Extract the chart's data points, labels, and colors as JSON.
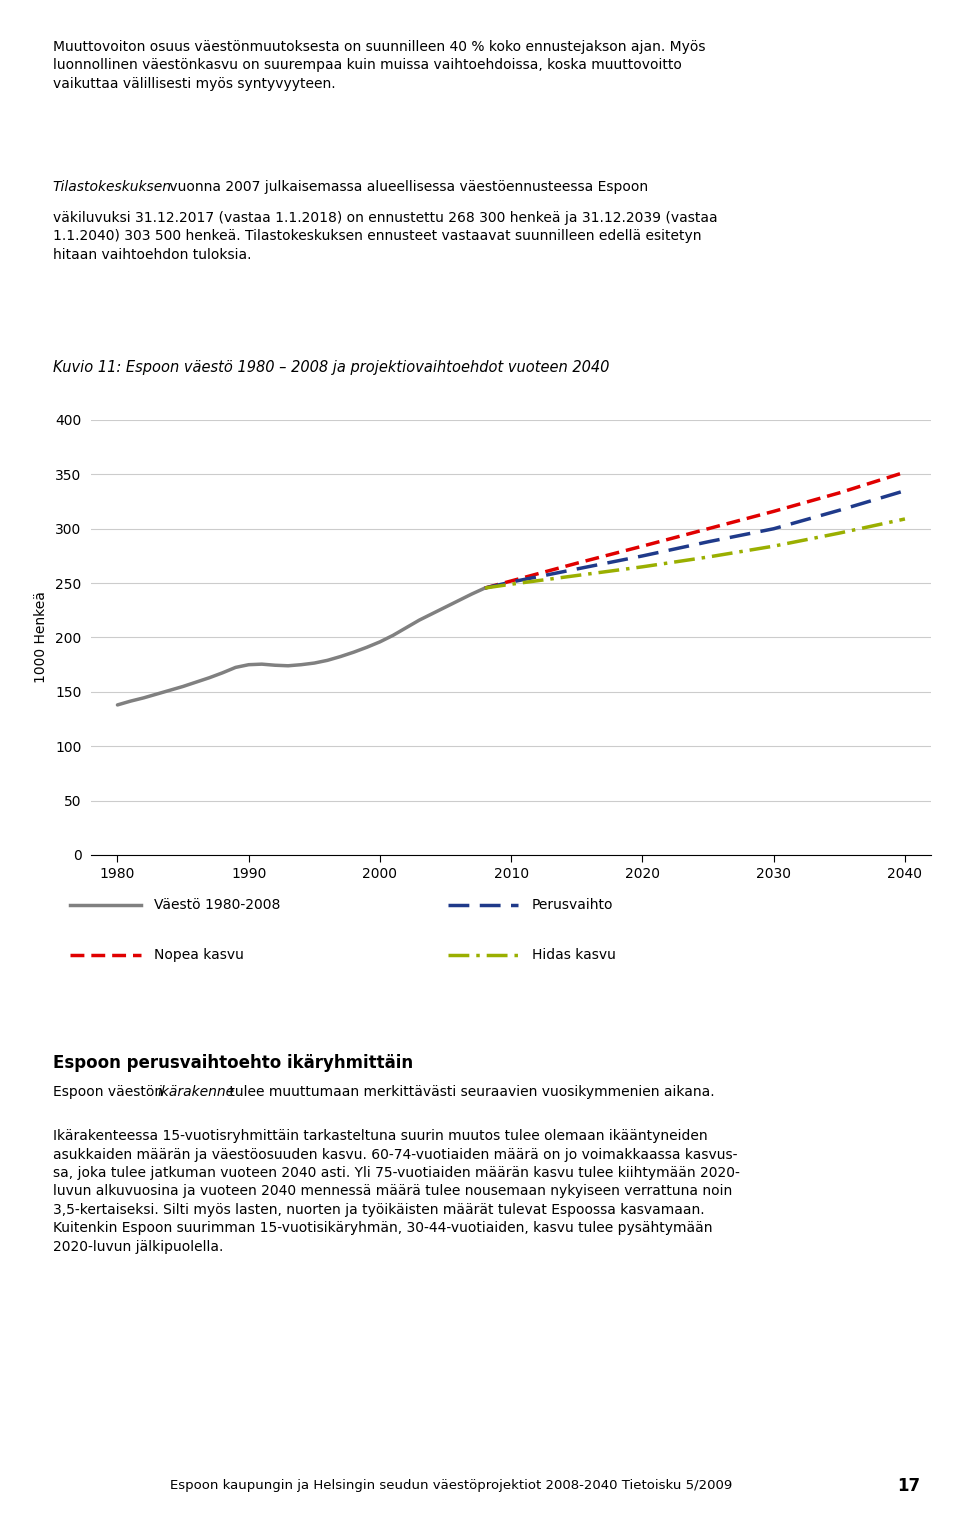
{
  "title": "Kuvio 11: Espoon väestö 1980 – 2008 ja projektiovaihtoehdot vuoteen 2040",
  "ylabel": "1000 Henkeä",
  "ylim": [
    0,
    400
  ],
  "yticks": [
    0,
    50,
    100,
    150,
    200,
    250,
    300,
    350,
    400
  ],
  "xlim": [
    1978,
    2042
  ],
  "xticks": [
    1980,
    1990,
    2000,
    2010,
    2020,
    2030,
    2040
  ],
  "historical_years": [
    1980,
    1981,
    1982,
    1983,
    1984,
    1985,
    1986,
    1987,
    1988,
    1989,
    1990,
    1991,
    1992,
    1993,
    1994,
    1995,
    1996,
    1997,
    1998,
    1999,
    2000,
    2001,
    2002,
    2003,
    2004,
    2005,
    2006,
    2007,
    2008
  ],
  "historical_values": [
    138.0,
    141.5,
    144.5,
    148.0,
    151.5,
    155.0,
    159.0,
    163.0,
    167.5,
    172.5,
    175.0,
    175.5,
    174.5,
    174.0,
    175.0,
    176.5,
    179.0,
    182.5,
    186.5,
    191.0,
    196.0,
    202.0,
    209.0,
    216.0,
    222.0,
    228.0,
    234.0,
    240.0,
    245.5
  ],
  "historical_color": "#808080",
  "historical_linewidth": 2.5,
  "proj_years": [
    2008,
    2010,
    2015,
    2020,
    2025,
    2030,
    2035,
    2040
  ],
  "nopea_values": [
    245.5,
    252.0,
    268.3,
    284.0,
    300.0,
    316.0,
    333.0,
    352.0
  ],
  "nopea_color": "#e00000",
  "nopea_linewidth": 2.5,
  "nopea_label": "Nopea kasvu",
  "perus_values": [
    245.5,
    251.0,
    263.0,
    275.0,
    288.0,
    300.0,
    317.0,
    335.0
  ],
  "perus_color": "#1f3a8a",
  "perus_linewidth": 2.5,
  "perus_label": "Perusvaihto",
  "hidas_values": [
    245.5,
    249.0,
    257.0,
    265.0,
    274.0,
    284.0,
    296.0,
    309.0
  ],
  "hidas_color": "#9aaf00",
  "hidas_linewidth": 2.5,
  "hidas_label": "Hidas kasvu",
  "hist_label": "Väestö 1980-2008",
  "bg_color": "#ffffff",
  "plot_bg_color": "#ffffff",
  "grid_color": "#cccccc",
  "footer_bg": "#f5f0d0",
  "footer_text": "Espoon kaupungin ja Helsingin seudun väestöprojektiot 2008-2040 Tietoisku 5/2009",
  "footer_page": "17"
}
